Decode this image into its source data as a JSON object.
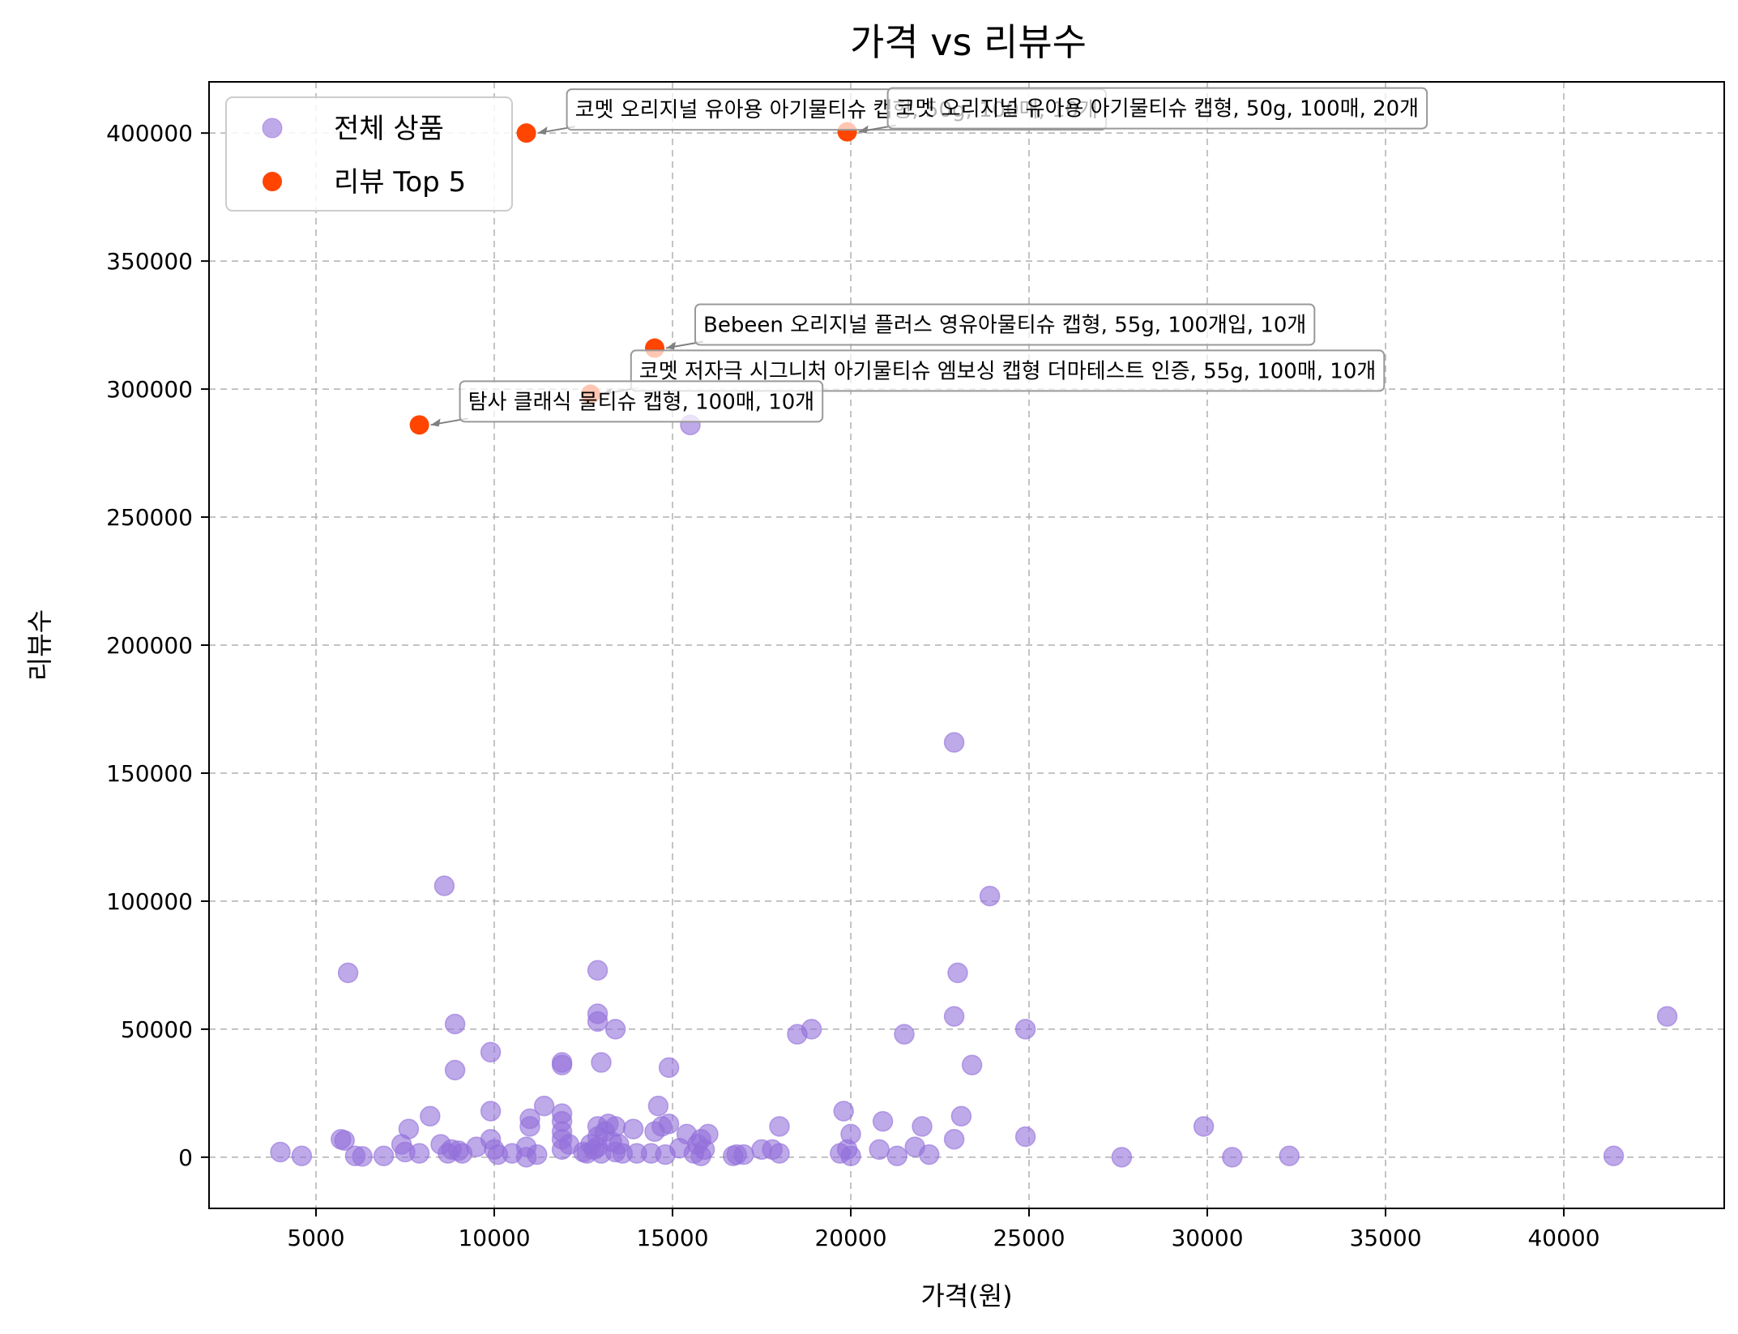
{
  "chart_data": {
    "type": "scatter",
    "title": "가격 vs 리뷰수",
    "xlabel": "가격(원)",
    "ylabel": "리뷰수",
    "xlim": [
      2000,
      44500
    ],
    "ylim": [
      -20000,
      420000
    ],
    "xticks": [
      5000,
      10000,
      15000,
      20000,
      25000,
      30000,
      35000,
      40000
    ],
    "yticks": [
      0,
      50000,
      100000,
      150000,
      200000,
      250000,
      300000,
      350000,
      400000
    ],
    "grid": true,
    "legend_position": "top-left",
    "series": [
      {
        "name": "전체 상품",
        "color": "#9370DB",
        "points": [
          [
            4000,
            2000
          ],
          [
            4600,
            500
          ],
          [
            5700,
            7000
          ],
          [
            5800,
            6500
          ],
          [
            5900,
            72000
          ],
          [
            6100,
            500
          ],
          [
            6300,
            300
          ],
          [
            6900,
            500
          ],
          [
            7400,
            5000
          ],
          [
            7500,
            2000
          ],
          [
            7600,
            11000
          ],
          [
            7900,
            1500
          ],
          [
            8200,
            16000
          ],
          [
            8500,
            5000
          ],
          [
            8600,
            106000
          ],
          [
            8700,
            1500
          ],
          [
            8800,
            3000
          ],
          [
            8900,
            52000
          ],
          [
            8900,
            34000
          ],
          [
            9000,
            2500
          ],
          [
            9100,
            1500
          ],
          [
            9500,
            4000
          ],
          [
            9900,
            41000
          ],
          [
            9900,
            18000
          ],
          [
            9900,
            7000
          ],
          [
            10000,
            3000
          ],
          [
            10100,
            1000
          ],
          [
            10500,
            1500
          ],
          [
            10900,
            0
          ],
          [
            10900,
            4000
          ],
          [
            11000,
            15000
          ],
          [
            11000,
            12000
          ],
          [
            11200,
            1000
          ],
          [
            11400,
            20000
          ],
          [
            11900,
            37000
          ],
          [
            11900,
            36000
          ],
          [
            11900,
            17000
          ],
          [
            11900,
            14000
          ],
          [
            11900,
            10000
          ],
          [
            11900,
            7000
          ],
          [
            11900,
            3000
          ],
          [
            12100,
            5000
          ],
          [
            12500,
            2000
          ],
          [
            12600,
            1500
          ],
          [
            12700,
            5000
          ],
          [
            12800,
            3000
          ],
          [
            12900,
            73000
          ],
          [
            12900,
            56000
          ],
          [
            12900,
            53000
          ],
          [
            12900,
            12000
          ],
          [
            12900,
            8000
          ],
          [
            12900,
            4000
          ],
          [
            13000,
            1500
          ],
          [
            13000,
            37000
          ],
          [
            13100,
            10000
          ],
          [
            13200,
            13000
          ],
          [
            13300,
            6000
          ],
          [
            13400,
            50000
          ],
          [
            13400,
            12000
          ],
          [
            13400,
            2000
          ],
          [
            13500,
            5000
          ],
          [
            13600,
            1500
          ],
          [
            13900,
            11000
          ],
          [
            14000,
            1500
          ],
          [
            14400,
            1500
          ],
          [
            14500,
            10000
          ],
          [
            14600,
            20000
          ],
          [
            14700,
            12000
          ],
          [
            14800,
            1000
          ],
          [
            14900,
            35000
          ],
          [
            14900,
            13000
          ],
          [
            15200,
            3500
          ],
          [
            15400,
            9000
          ],
          [
            15500,
            286000
          ],
          [
            15600,
            1500
          ],
          [
            15700,
            5000
          ],
          [
            15800,
            500
          ],
          [
            15800,
            7000
          ],
          [
            15900,
            3000
          ],
          [
            16000,
            9000
          ],
          [
            16700,
            500
          ],
          [
            16800,
            1000
          ],
          [
            17000,
            1000
          ],
          [
            17500,
            3000
          ],
          [
            17800,
            3000
          ],
          [
            18000,
            12000
          ],
          [
            18000,
            1500
          ],
          [
            18500,
            48000
          ],
          [
            18900,
            50000
          ],
          [
            19700,
            1500
          ],
          [
            19800,
            18000
          ],
          [
            19900,
            3000
          ],
          [
            20000,
            9000
          ],
          [
            20000,
            500
          ],
          [
            20900,
            14000
          ],
          [
            20800,
            3000
          ],
          [
            21300,
            500
          ],
          [
            21500,
            48000
          ],
          [
            21800,
            4000
          ],
          [
            22000,
            12000
          ],
          [
            22200,
            1000
          ],
          [
            22900,
            162000
          ],
          [
            22900,
            7000
          ],
          [
            22900,
            55000
          ],
          [
            23000,
            72000
          ],
          [
            23100,
            16000
          ],
          [
            23400,
            36000
          ],
          [
            23900,
            102000
          ],
          [
            24900,
            50000
          ],
          [
            24900,
            8000
          ],
          [
            27600,
            0
          ],
          [
            29900,
            12000
          ],
          [
            30700,
            0
          ],
          [
            32300,
            500
          ],
          [
            41400,
            500
          ],
          [
            42900,
            55000
          ]
        ]
      },
      {
        "name": "리뷰 Top 5",
        "color": "#FF4500",
        "points": [
          [
            10900,
            400000
          ],
          [
            19900,
            400500
          ],
          [
            14500,
            316000
          ],
          [
            12700,
            298000
          ],
          [
            7900,
            286000
          ]
        ]
      }
    ],
    "annotations": [
      {
        "text": "코멧 오리지널 유아용 아기물티슈 캡형, 50g, 100매, 10개",
        "x": 10900,
        "y": 400000
      },
      {
        "text": "코멧 오리지널 유아용 아기물티슈 캡형, 50g, 100매, 20개",
        "x": 19900,
        "y": 400500
      },
      {
        "text": "Bebeen 오리지널 플러스 영유아물티슈 캡형, 55g, 100개입, 10개",
        "x": 14500,
        "y": 316000
      },
      {
        "text": "코멧 저자극 시그니처 아기물티슈 엠보싱 캡형 더마테스트 인증, 55g, 100매, 10개",
        "x": 12700,
        "y": 298000
      },
      {
        "text": "탐사 클래식 물티슈 캡형, 100매, 10개",
        "x": 7900,
        "y": 286000
      }
    ]
  }
}
